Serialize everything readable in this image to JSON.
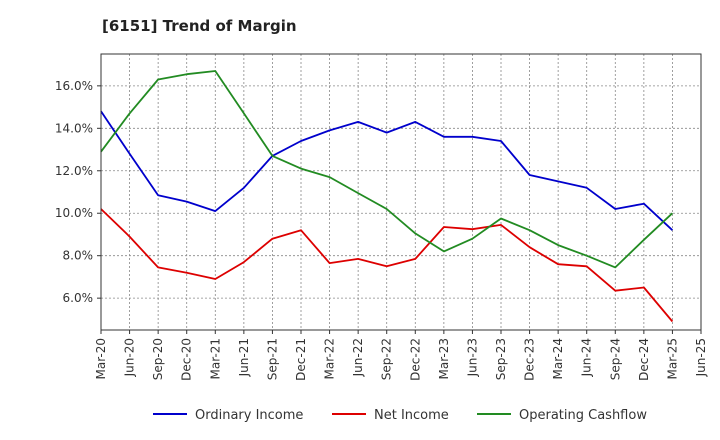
{
  "chart_data": {
    "type": "line",
    "title": "[6151]  Trend of Margin",
    "xlabel": "",
    "ylabel": "",
    "categories": [
      "Mar-20",
      "Jun-20",
      "Sep-20",
      "Dec-20",
      "Mar-21",
      "Jun-21",
      "Sep-21",
      "Dec-21",
      "Mar-22",
      "Jun-22",
      "Sep-22",
      "Dec-22",
      "Mar-23",
      "Jun-23",
      "Sep-23",
      "Dec-23",
      "Mar-24",
      "Jun-24",
      "Sep-24",
      "Dec-24",
      "Mar-25",
      "Jun-25"
    ],
    "ylim": [
      4.5,
      17.5
    ],
    "yticks": [
      6.0,
      8.0,
      10.0,
      12.0,
      14.0,
      16.0
    ],
    "ytick_labels": [
      "6.0%",
      "8.0%",
      "10.0%",
      "12.0%",
      "14.0%",
      "16.0%"
    ],
    "grid": true,
    "legend_position": "bottom",
    "series": [
      {
        "name": "Ordinary Income",
        "color": "#0000cc",
        "values": [
          14.8,
          12.8,
          10.85,
          10.55,
          10.1,
          11.2,
          12.7,
          13.4,
          13.9,
          14.3,
          13.8,
          14.3,
          13.6,
          13.6,
          13.4,
          11.8,
          11.5,
          11.2,
          10.2,
          10.45,
          9.2,
          null
        ]
      },
      {
        "name": "Net Income",
        "color": "#dd0000",
        "values": [
          10.2,
          8.9,
          7.45,
          7.2,
          6.9,
          7.7,
          8.8,
          9.2,
          7.65,
          7.85,
          7.5,
          7.85,
          9.35,
          9.25,
          9.45,
          8.4,
          7.6,
          7.5,
          6.35,
          6.5,
          4.9,
          null
        ]
      },
      {
        "name": "Operating Cashflow",
        "color": "#228b22",
        "values": [
          12.9,
          14.7,
          16.3,
          16.55,
          16.7,
          14.7,
          12.7,
          12.1,
          11.7,
          10.95,
          10.2,
          9.05,
          8.2,
          8.8,
          9.75,
          9.2,
          8.5,
          8.0,
          7.45,
          8.75,
          10.0,
          null
        ]
      }
    ]
  },
  "colors": {
    "grid": "#888888",
    "frame": "#333333"
  }
}
